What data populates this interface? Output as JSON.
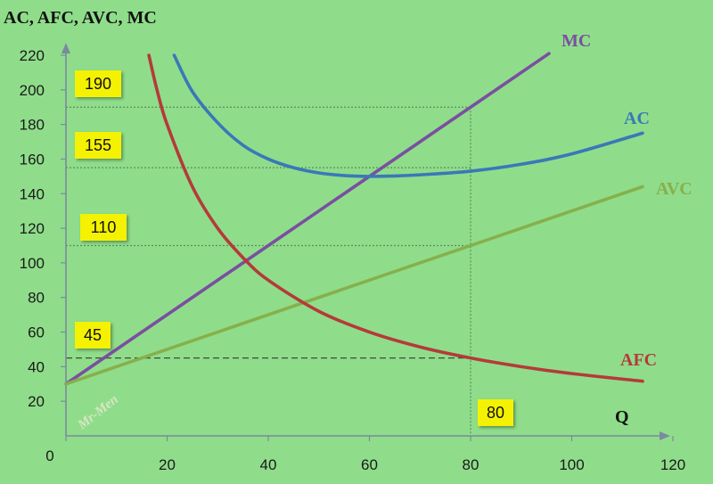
{
  "chart_data": {
    "type": "line",
    "ylabel": "AC, AFC, AVC, MC",
    "xlabel": "Q",
    "xlim": [
      0,
      120
    ],
    "ylim": [
      0,
      220
    ],
    "x_ticks": [
      0,
      20,
      40,
      60,
      80,
      100,
      120
    ],
    "y_ticks": [
      20,
      40,
      60,
      80,
      100,
      120,
      140,
      160,
      180,
      200,
      220
    ],
    "series": [
      {
        "name": "MC",
        "color": "#7a4fa0",
        "x": [
          0,
          20,
          40,
          60,
          80,
          95.5
        ],
        "y": [
          30,
          70,
          110,
          150,
          190,
          221
        ]
      },
      {
        "name": "AC",
        "color": "#3a78b8",
        "x": [
          21.4,
          25,
          30,
          35,
          40,
          45,
          50,
          55,
          60,
          65,
          70,
          80,
          90,
          100,
          114
        ],
        "y": [
          220,
          199,
          181,
          168,
          160,
          155,
          152,
          150.5,
          150,
          150.2,
          150.9,
          153,
          157,
          163,
          175
        ]
      },
      {
        "name": "AVC",
        "color": "#86b04c",
        "x": [
          0,
          114
        ],
        "y": [
          30,
          144
        ]
      },
      {
        "name": "AFC",
        "color": "#b53a3a",
        "x": [
          16.4,
          18,
          20,
          25,
          30,
          35,
          40,
          50,
          60,
          70,
          80,
          90,
          100,
          114
        ],
        "y": [
          220,
          200,
          180,
          144,
          120,
          103,
          90,
          72,
          60,
          51.4,
          45,
          40,
          36,
          31.6
        ]
      }
    ],
    "reference_lines": [
      {
        "value": 190,
        "label": "190"
      },
      {
        "value": 155,
        "label": "155"
      },
      {
        "value": 110,
        "label": "110"
      },
      {
        "value": 45,
        "label": "45"
      }
    ],
    "vertical_line": {
      "value": 80,
      "label": "80"
    },
    "watermark": "Mr-Men"
  }
}
